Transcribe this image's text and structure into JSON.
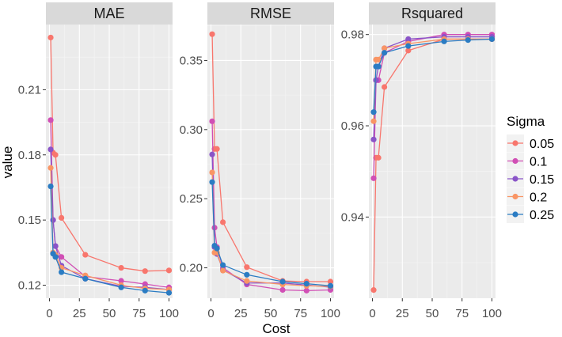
{
  "chart_data": {
    "type": "line",
    "xlabel": "Cost",
    "ylabel": "value",
    "x": [
      1,
      3,
      5,
      10,
      30,
      60,
      80,
      100
    ],
    "xlim": [
      -3,
      103
    ],
    "xticks": [
      0,
      25,
      50,
      75,
      100
    ],
    "legend": {
      "title": "Sigma",
      "position": "right"
    },
    "series": [
      {
        "name": "0.05",
        "color": "#F8766D"
      },
      {
        "name": "0.1",
        "color": "#D14FB5"
      },
      {
        "name": "0.15",
        "color": "#8A54C8"
      },
      {
        "name": "0.2",
        "color": "#F99565"
      },
      {
        "name": "0.25",
        "color": "#2B7CC3"
      }
    ],
    "panels": [
      {
        "title": "MAE",
        "ylim": [
          0.114,
          0.24
        ],
        "yticks": [
          0.12,
          0.15,
          0.18,
          0.21
        ],
        "ytick_labels": [
          "0.12",
          "0.15",
          "0.18",
          "0.21"
        ],
        "values": {
          "0.05": [
            0.234,
            0.181,
            0.18,
            0.151,
            0.134,
            0.128,
            0.1265,
            0.1268
          ],
          "0.1": [
            0.196,
            0.15,
            0.138,
            0.133,
            0.124,
            0.122,
            0.1205,
            0.119
          ],
          "0.15": [
            0.1825,
            0.15,
            0.138,
            0.129,
            0.123,
            0.1195,
            0.119,
            0.118
          ],
          "0.2": [
            0.174,
            0.135,
            0.134,
            0.128,
            0.1245,
            0.12,
            0.1185,
            0.118
          ],
          "0.25": [
            0.1655,
            0.1345,
            0.133,
            0.126,
            0.123,
            0.119,
            0.1175,
            0.1165
          ]
        }
      },
      {
        "title": "RMSE",
        "ylim": [
          0.178,
          0.376
        ],
        "yticks": [
          0.2,
          0.25,
          0.3,
          0.35
        ],
        "ytick_labels": [
          "0.20",
          "0.25",
          "0.30",
          "0.35"
        ],
        "values": {
          "0.05": [
            0.369,
            0.286,
            0.286,
            0.233,
            0.2005,
            0.1905,
            0.19,
            0.19
          ],
          "0.1": [
            0.306,
            0.229,
            0.215,
            0.2,
            0.188,
            0.184,
            0.1835,
            0.184
          ],
          "0.15": [
            0.282,
            0.215,
            0.21,
            0.1985,
            0.189,
            0.189,
            0.1875,
            0.186
          ],
          "0.2": [
            0.269,
            0.211,
            0.211,
            0.198,
            0.1905,
            0.188,
            0.187,
            0.1865
          ],
          "0.25": [
            0.262,
            0.216,
            0.214,
            0.202,
            0.195,
            0.19,
            0.1885,
            0.187
          ]
        }
      },
      {
        "title": "Rsquared",
        "ylim": [
          0.9222,
          0.9822
        ],
        "yticks": [
          0.94,
          0.96,
          0.98
        ],
        "ytick_labels": [
          "0.94",
          "0.96",
          "0.98"
        ],
        "values": {
          "0.05": [
            0.924,
            0.953,
            0.953,
            0.9685,
            0.9765,
            0.979,
            0.979,
            0.979
          ],
          "0.1": [
            0.9485,
            0.97,
            0.97,
            0.976,
            0.9785,
            0.98,
            0.98,
            0.98
          ],
          "0.15": [
            0.957,
            0.97,
            0.973,
            0.977,
            0.979,
            0.9795,
            0.9795,
            0.9795
          ],
          "0.2": [
            0.961,
            0.9745,
            0.9745,
            0.977,
            0.978,
            0.979,
            0.979,
            0.979
          ],
          "0.25": [
            0.963,
            0.973,
            0.973,
            0.976,
            0.9775,
            0.9785,
            0.9788,
            0.979
          ]
        }
      }
    ]
  }
}
